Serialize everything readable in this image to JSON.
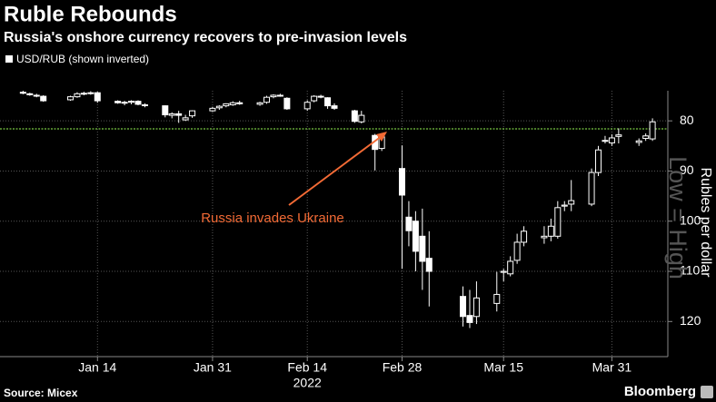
{
  "chart_data": {
    "type": "candlestick",
    "title": "Ruble Rebounds",
    "subtitle": "Russia's onshore currency recovers to pre-invasion levels",
    "legend": "USD/RUB (shown inverted)",
    "y_label": "Rubles per dollar",
    "side_note": "Low = High",
    "annotation": "Russia invades Ukraine",
    "year_label": "2022",
    "source": "Source: Micex",
    "brand": "Bloomberg",
    "up_color": "#ffffff",
    "annotation_color": "#f26a35",
    "reference_line": {
      "value": 81.6,
      "color": "#7ac943"
    },
    "grid": true,
    "inverted": true,
    "x": [
      "2022-01-03",
      "2022-01-04",
      "2022-01-05",
      "2022-01-06",
      "2022-01-10",
      "2022-01-11",
      "2022-01-12",
      "2022-01-13",
      "2022-01-14",
      "2022-01-17",
      "2022-01-18",
      "2022-01-19",
      "2022-01-20",
      "2022-01-21",
      "2022-01-24",
      "2022-01-25",
      "2022-01-26",
      "2022-01-27",
      "2022-01-28",
      "2022-01-31",
      "2022-02-01",
      "2022-02-02",
      "2022-02-03",
      "2022-02-04",
      "2022-02-07",
      "2022-02-08",
      "2022-02-09",
      "2022-02-10",
      "2022-02-11",
      "2022-02-14",
      "2022-02-15",
      "2022-02-16",
      "2022-02-17",
      "2022-02-18",
      "2022-02-21",
      "2022-02-22",
      "2022-02-24",
      "2022-02-25",
      "2022-02-28",
      "2022-03-01",
      "2022-03-02",
      "2022-03-03",
      "2022-03-04",
      "2022-03-09",
      "2022-03-10",
      "2022-03-11",
      "2022-03-14",
      "2022-03-15",
      "2022-03-16",
      "2022-03-17",
      "2022-03-18",
      "2022-03-21",
      "2022-03-22",
      "2022-03-23",
      "2022-03-24",
      "2022-03-25",
      "2022-03-28",
      "2022-03-29",
      "2022-03-30",
      "2022-03-31",
      "2022-04-01",
      "2022-04-04",
      "2022-04-05",
      "2022-04-06"
    ],
    "open": [
      74.3,
      74.6,
      74.9,
      75.1,
      75.8,
      75.2,
      74.6,
      74.5,
      74.4,
      76.1,
      76.4,
      76.3,
      76.1,
      76.8,
      77.0,
      78.9,
      78.6,
      79.8,
      79.0,
      78.0,
      77.4,
      77.0,
      76.8,
      76.4,
      76.7,
      76.3,
      75.2,
      74.9,
      75.5,
      77.6,
      76.0,
      75.1,
      75.4,
      77.0,
      78.0,
      80.2,
      82.9,
      85.5,
      89.5,
      99.2,
      100.0,
      103.0,
      107.4,
      115.0,
      118.8,
      119.0,
      116.4,
      110.2,
      110.5,
      107.8,
      104.2,
      103.3,
      103.0,
      103.0,
      97.0,
      96.6,
      96.6,
      90.3,
      84.0,
      84.4,
      83.1,
      84.3,
      83.5,
      83.6
    ],
    "high": [
      74.7,
      75.0,
      75.3,
      76.2,
      76.0,
      75.4,
      74.9,
      74.8,
      76.4,
      76.6,
      76.9,
      76.7,
      76.9,
      77.3,
      79.3,
      79.5,
      80.4,
      80.0,
      79.4,
      78.2,
      77.8,
      77.3,
      77.0,
      76.8,
      77.0,
      76.6,
      75.5,
      75.2,
      77.8,
      78.0,
      76.3,
      75.5,
      77.6,
      77.8,
      80.4,
      80.5,
      89.9,
      86.0,
      109.5,
      105.0,
      110.0,
      113.7,
      117.0,
      121.0,
      121.3,
      120.5,
      118.0,
      112.0,
      111.0,
      108.5,
      105.0,
      104.5,
      104.0,
      103.5,
      98.0,
      98.0,
      97.0,
      91.0,
      84.5,
      85.0,
      84.5,
      85.0,
      84.0,
      84.0
    ],
    "low": [
      74.0,
      74.4,
      74.6,
      74.9,
      75.0,
      74.3,
      74.2,
      74.1,
      74.2,
      75.9,
      76.0,
      75.9,
      75.9,
      76.5,
      76.9,
      78.3,
      78.0,
      78.8,
      77.9,
      77.2,
      76.9,
      76.5,
      76.1,
      76.0,
      76.2,
      75.0,
      74.7,
      74.6,
      75.3,
      75.9,
      74.9,
      74.8,
      75.3,
      76.5,
      77.8,
      78.0,
      82.6,
      82.5,
      84.9,
      96.0,
      98.0,
      97.5,
      102.0,
      113.0,
      113.7,
      112.0,
      110.1,
      109.5,
      107.0,
      102.5,
      101.0,
      101.0,
      99.5,
      96.0,
      96.0,
      91.8,
      89.5,
      85.0,
      83.0,
      82.7,
      81.5,
      83.5,
      82.5,
      79.5
    ],
    "close": [
      74.5,
      74.8,
      75.0,
      76.0,
      75.2,
      74.6,
      74.5,
      74.4,
      76.0,
      76.4,
      76.3,
      76.1,
      76.7,
      76.9,
      78.8,
      78.6,
      78.9,
      79.4,
      78.0,
      77.5,
      77.1,
      76.6,
      76.4,
      76.6,
      76.4,
      75.3,
      74.9,
      75.0,
      77.6,
      76.3,
      75.1,
      75.2,
      77.0,
      77.5,
      80.1,
      78.9,
      85.7,
      83.2,
      94.8,
      101.9,
      106.0,
      108.0,
      110.0,
      119.0,
      120.2,
      115.3,
      114.6,
      110.0,
      108.0,
      104.2,
      102.0,
      103.0,
      101.0,
      97.3,
      96.8,
      95.9,
      90.3,
      85.8,
      83.9,
      83.4,
      82.8,
      84.0,
      83.0,
      80.2
    ],
    "xlim": [
      "2021-12-31",
      "2022-04-08"
    ],
    "xticks": [
      {
        "value": "2022-01-14",
        "label": "Jan 14"
      },
      {
        "value": "2022-01-31",
        "label": "Jan 31"
      },
      {
        "value": "2022-02-14",
        "label": "Feb 14"
      },
      {
        "value": "2022-02-28",
        "label": "Feb 28"
      },
      {
        "value": "2022-03-15",
        "label": "Mar 15"
      },
      {
        "value": "2022-03-31",
        "label": "Mar 31"
      }
    ],
    "ylim": [
      127,
      74
    ],
    "yticks": [
      80,
      90,
      100,
      110,
      120
    ]
  }
}
